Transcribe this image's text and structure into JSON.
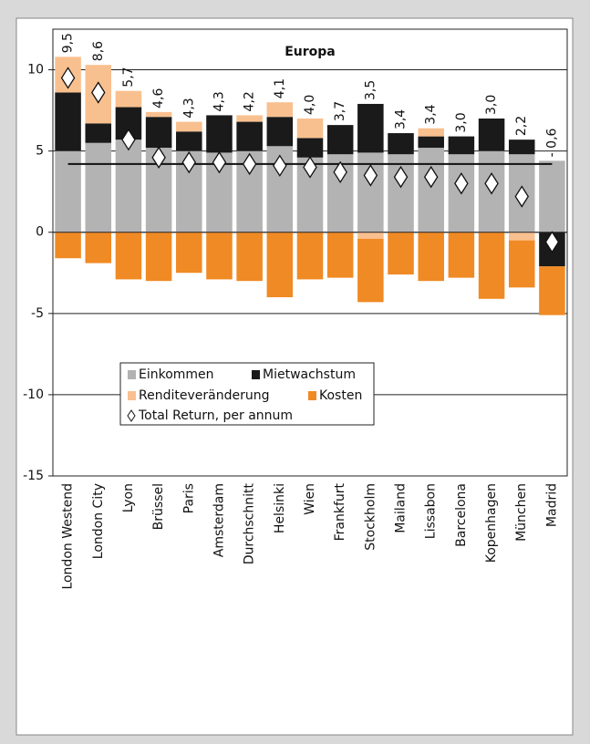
{
  "chart_data": {
    "type": "bar",
    "title": "Europa",
    "categories": [
      "London Westend",
      "London City",
      "Lyon",
      "Brüssel",
      "Paris",
      "Amsterdam",
      "Durchschnitt",
      "Helsinki",
      "Wien",
      "Frankfurt",
      "Stockholm",
      "Mailand",
      "Lissabon",
      "Barcelona",
      "Kopenhagen",
      "München",
      "Madrid"
    ],
    "series": [
      {
        "name": "Einkommen",
        "color": "#b3b3b3",
        "values": [
          5.0,
          5.5,
          5.7,
          5.2,
          5.0,
          4.9,
          5.0,
          5.3,
          4.6,
          4.8,
          4.9,
          4.8,
          5.2,
          4.8,
          5.0,
          4.8,
          4.4
        ]
      },
      {
        "name": "Mietwachstum",
        "color": "#1a1a1a",
        "values": [
          3.6,
          1.2,
          2.0,
          1.9,
          1.2,
          2.3,
          1.8,
          1.8,
          1.2,
          1.8,
          3.0,
          1.3,
          0.7,
          1.1,
          2.0,
          0.9,
          -2.1
        ]
      },
      {
        "name": "Renditeveränderung",
        "color": "#f9c08f",
        "values": [
          2.2,
          3.6,
          1.0,
          0.3,
          0.6,
          0,
          0.4,
          0.9,
          1.2,
          0,
          -0.4,
          0,
          0.5,
          0,
          0,
          -0.5,
          0
        ]
      },
      {
        "name": "Kosten",
        "color": "#f08a24",
        "values": [
          -1.6,
          -1.9,
          -2.9,
          -3.0,
          -2.5,
          -2.9,
          -3.0,
          -4.0,
          -2.9,
          -2.8,
          -3.9,
          -2.6,
          -3.0,
          -2.8,
          -4.1,
          -2.9,
          -3.0
        ]
      },
      {
        "name": "Total Return, per annum",
        "color": "#ffffff",
        "values": [
          9.5,
          8.6,
          5.7,
          4.6,
          4.3,
          4.3,
          4.2,
          4.1,
          4.0,
          3.7,
          3.5,
          3.4,
          3.4,
          3.0,
          3.0,
          2.2,
          -0.6
        ],
        "value_labels": [
          "9,5",
          "8,6",
          "5,7",
          "4,6",
          "4,3",
          "4,3",
          "4,2",
          "4,1",
          "4,0",
          "3,7",
          "3,5",
          "3,4",
          "3,4",
          "3,0",
          "3,0",
          "2,2",
          "- 0,6"
        ]
      }
    ],
    "ylim": [
      -15,
      12.5
    ],
    "yticks": [
      -15,
      -10,
      -5,
      0,
      5,
      10
    ],
    "grid": true
  }
}
